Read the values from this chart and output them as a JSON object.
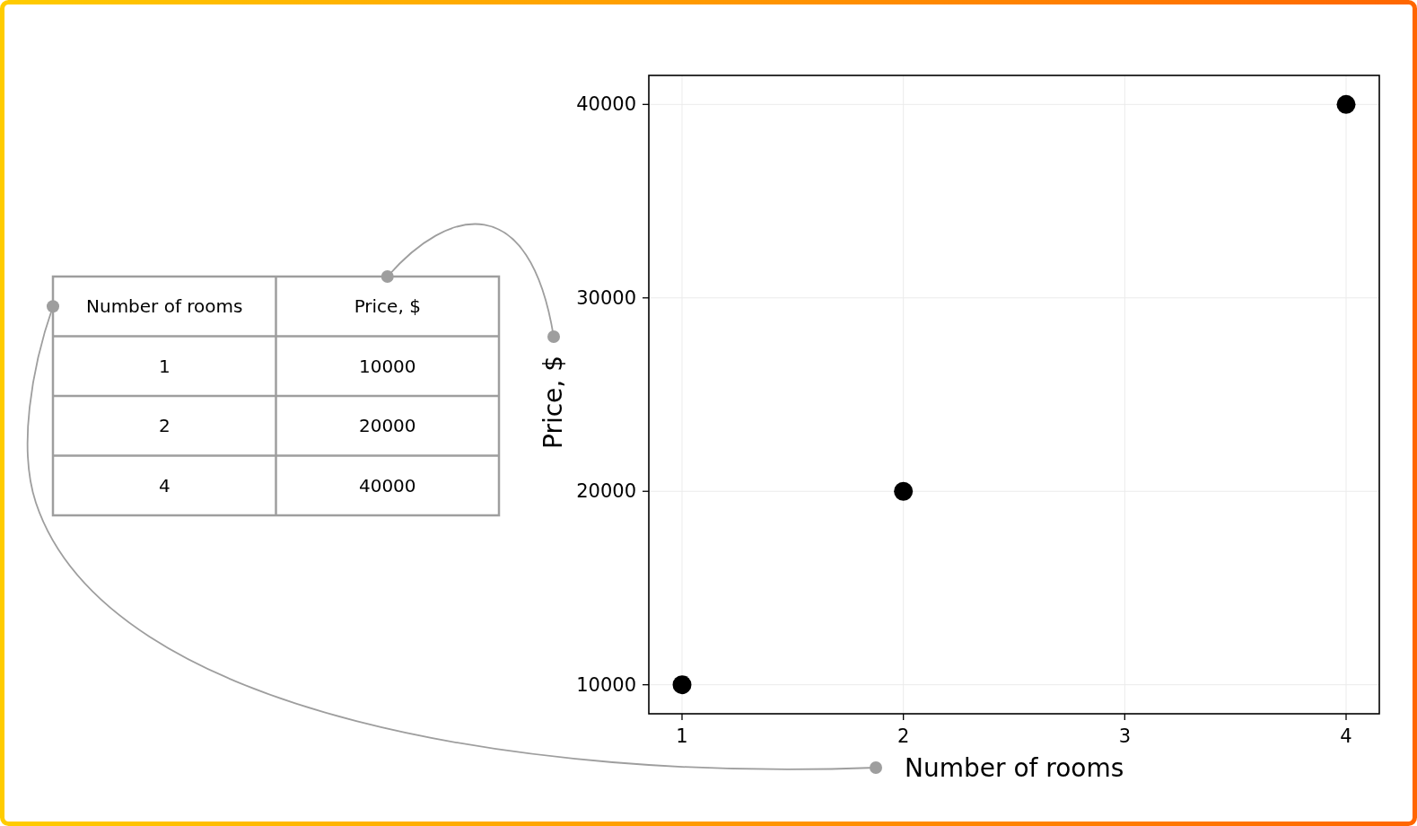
{
  "chart_data": [
    {
      "type": "scatter",
      "xlabel": "Number of rooms",
      "ylabel": "Price, $",
      "x": [
        1,
        2,
        4
      ],
      "values": [
        10000,
        20000,
        40000
      ],
      "color": "#000000",
      "marker": "circle",
      "xlim": [
        0.85,
        4.15
      ],
      "ylim": [
        8500,
        41500
      ],
      "xticks": [
        1,
        2,
        3,
        4
      ],
      "yticks": [
        10000,
        20000,
        30000,
        40000
      ],
      "grid": true
    },
    {
      "type": "other",
      "xlabel": "Number of rooms",
      "ylabel": "Price, $",
      "categories": [
        "1",
        "2",
        "4"
      ],
      "values": [
        10000,
        20000,
        40000
      ],
      "data_labels": true
    }
  ]
}
